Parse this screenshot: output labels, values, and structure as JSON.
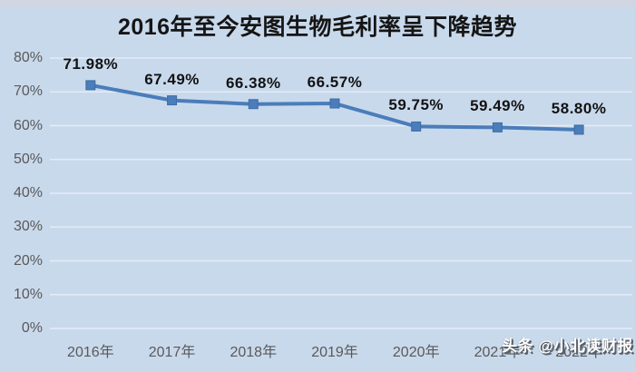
{
  "watermark": "头条 @小北读财报",
  "colors": {
    "background": "#c9d9ec",
    "line": "#4a7dba",
    "marker_border": "#3d6da6",
    "axis_text": "#595959",
    "data_label_text": "#121212",
    "title_text": "#151515",
    "gridline": "rgba(255,255,255,0.5)",
    "watermark_text": "#ffffff",
    "watermark_shadow": "#596069"
  },
  "chart_data": {
    "type": "line",
    "title": "2016年至今安图生物毛利率呈下降趋势",
    "categories": [
      "2016年",
      "2017年",
      "2018年",
      "2019年",
      "2020年",
      "2021年",
      "2022年"
    ],
    "values": [
      71.98,
      67.49,
      66.38,
      66.57,
      59.75,
      59.49,
      58.8
    ],
    "data_labels": [
      "71.98%",
      "67.49%",
      "66.38%",
      "66.57%",
      "59.75%",
      "59.49%",
      "58.80%"
    ],
    "y_ticks": [
      "0%",
      "10%",
      "20%",
      "30%",
      "40%",
      "50%",
      "60%",
      "70%",
      "80%"
    ],
    "ylim": [
      0,
      80
    ],
    "grid": true,
    "legend": "none",
    "marker": "square",
    "x_labels_occluded_by_watermark": [
      5,
      6
    ]
  }
}
